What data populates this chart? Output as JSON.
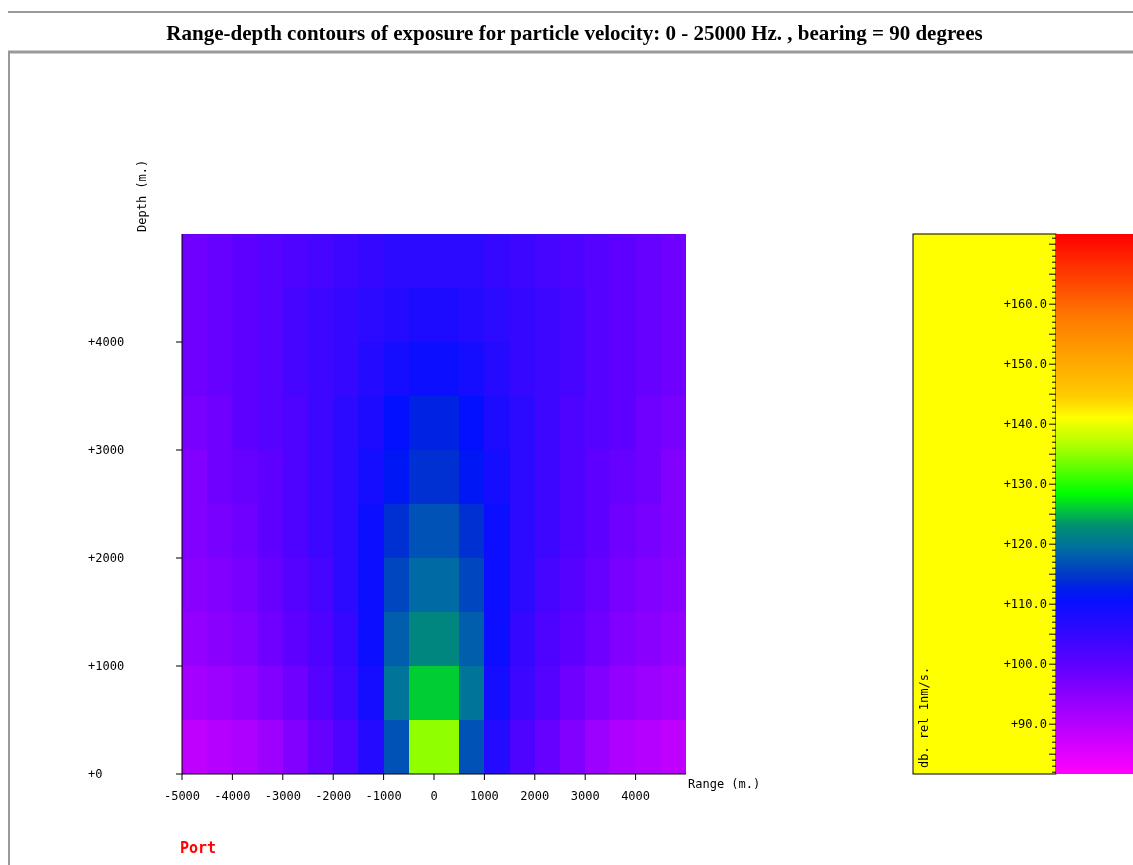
{
  "chart_data": {
    "type": "heatmap",
    "title": "Range-depth contours of exposure for particle velocity: 0 - 25000 Hz. , bearing = 90 degrees",
    "xlabel": "Range (m.)",
    "ylabel": "Depth (m.)",
    "clabel": "db. rel 1nm/s.",
    "xlim": [
      -5000,
      5000
    ],
    "xticks": [
      -5000,
      -4000,
      -3000,
      -2000,
      -1000,
      0,
      1000,
      2000,
      3000,
      4000
    ],
    "ylim": [
      0,
      5000
    ],
    "yticks": [
      {
        "value": 0,
        "label": "+0"
      },
      {
        "value": 1000,
        "label": "+1000"
      },
      {
        "value": 2000,
        "label": "+2000"
      },
      {
        "value": 3000,
        "label": "+3000"
      },
      {
        "value": 4000,
        "label": "+4000"
      }
    ],
    "clim": [
      81.7,
      171.7
    ],
    "cticks": [
      {
        "value": 90,
        "label": "+90.0"
      },
      {
        "value": 100,
        "label": "+100.0"
      },
      {
        "value": 110,
        "label": "+110.0"
      },
      {
        "value": 120,
        "label": "+120.0"
      },
      {
        "value": 130,
        "label": "+130.0"
      },
      {
        "value": 140,
        "label": "+140.0"
      },
      {
        "value": 150,
        "label": "+150.0"
      },
      {
        "value": 160,
        "label": "+160.0"
      }
    ],
    "cells": [
      [
        98,
        99,
        100,
        101,
        102,
        103,
        104,
        105,
        106,
        106,
        106,
        106,
        105,
        104,
        103,
        102,
        101,
        100,
        99,
        98
      ],
      [
        98,
        99,
        100,
        101,
        103,
        104,
        105,
        106,
        107,
        108,
        108,
        107,
        106,
        105,
        104,
        103,
        101,
        100,
        99,
        98
      ],
      [
        98,
        99,
        100,
        101,
        103,
        104,
        105,
        107,
        109,
        110,
        110,
        109,
        107,
        105,
        104,
        103,
        101,
        100,
        99,
        98
      ],
      [
        97,
        98,
        100,
        101,
        102,
        104,
        106,
        108,
        111,
        113,
        113,
        111,
        108,
        106,
        104,
        102,
        101,
        100,
        98,
        97
      ],
      [
        96,
        98,
        99,
        100,
        102,
        104,
        106,
        109,
        112,
        114,
        114,
        112,
        109,
        106,
        104,
        102,
        100,
        99,
        98,
        96
      ],
      [
        96,
        97,
        98,
        100,
        102,
        104,
        106,
        110,
        114,
        117,
        117,
        114,
        110,
        106,
        104,
        102,
        100,
        98,
        97,
        96
      ],
      [
        95,
        96,
        97,
        99,
        101,
        103,
        106,
        110,
        116,
        119,
        119,
        116,
        110,
        106,
        103,
        101,
        99,
        97,
        96,
        95
      ],
      [
        94,
        95,
        96,
        98,
        100,
        102,
        105,
        110,
        118,
        122,
        122,
        118,
        110,
        105,
        102,
        100,
        98,
        96,
        95,
        94
      ],
      [
        92,
        93,
        94,
        96,
        98,
        101,
        104,
        109,
        120,
        126,
        126,
        120,
        109,
        104,
        101,
        98,
        96,
        94,
        93,
        92
      ],
      [
        89,
        90,
        91,
        93,
        96,
        99,
        102,
        107,
        117,
        135,
        135,
        117,
        107,
        102,
        99,
        96,
        93,
        91,
        90,
        89
      ]
    ],
    "annotations": [
      "Port"
    ]
  }
}
